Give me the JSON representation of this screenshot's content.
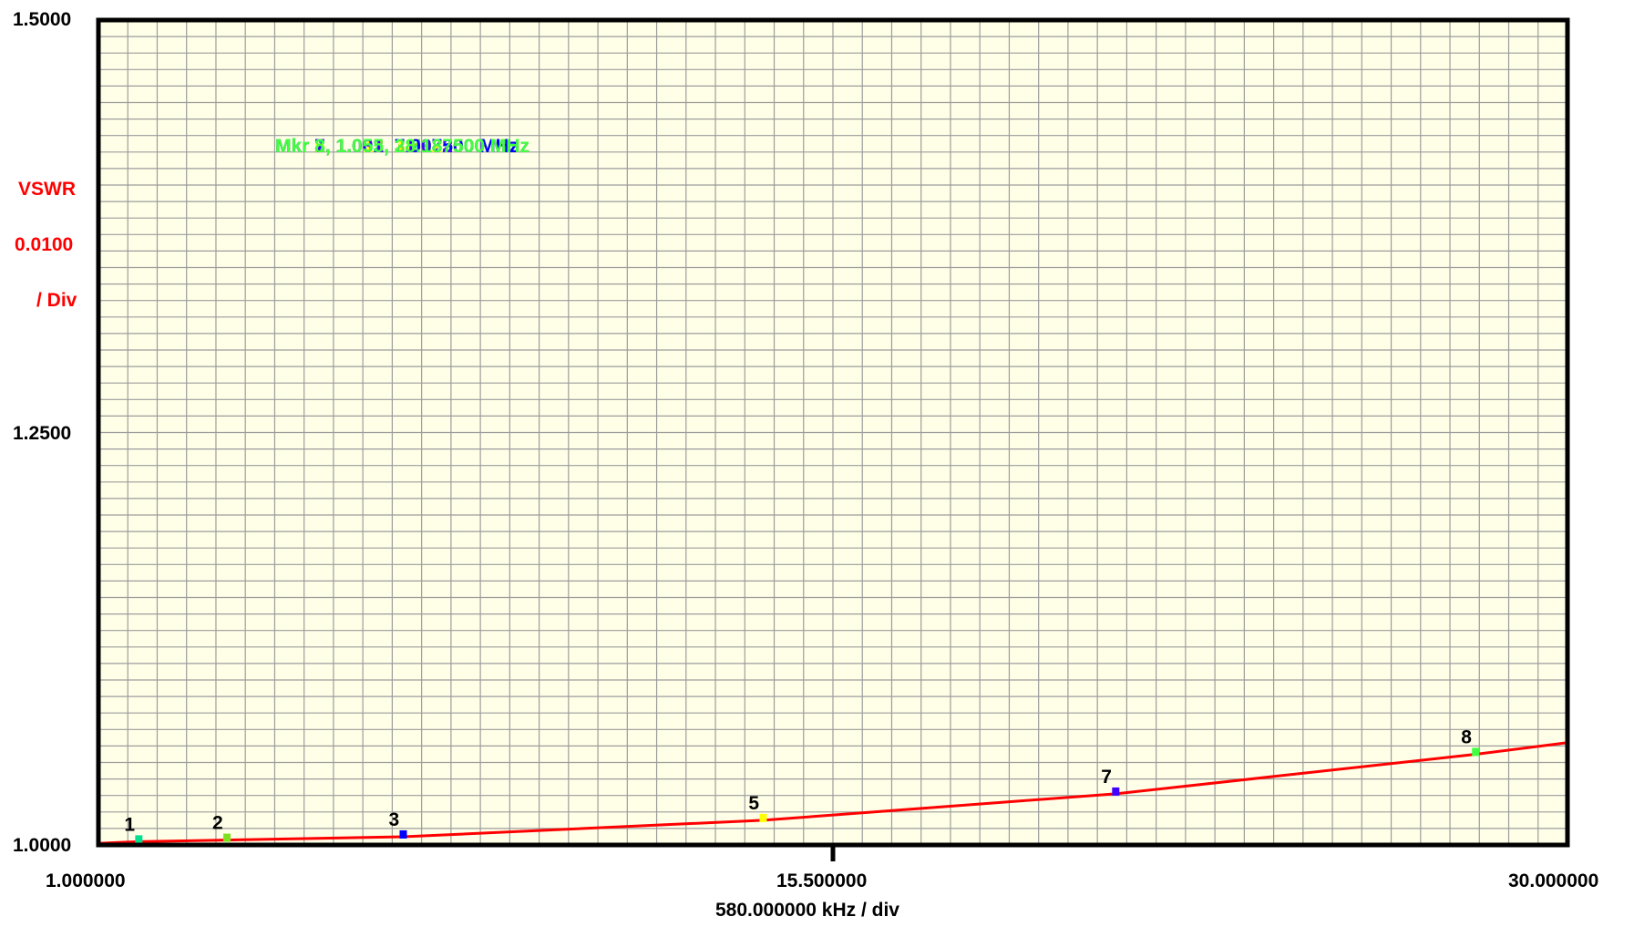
{
  "chart_data": {
    "type": "line",
    "y_axis": {
      "ticks": [
        "1.5000",
        "1.2500",
        "1.0000"
      ],
      "title_lines": [
        "VSWR",
        "0.0100",
        "/ Div"
      ],
      "range": [
        1.0,
        1.5
      ]
    },
    "x_axis": {
      "ticks": [
        "1.000000",
        "15.500000",
        "30.000000"
      ],
      "label": "580.000000 kHz / div",
      "range": [
        1.0,
        30.0
      ]
    },
    "grid": true,
    "series": [
      {
        "color": "#ff0000",
        "x": [
          1.0,
          1.7975,
          3.5375,
          7.0175,
          14.1225,
          21.0825,
          28.1875,
          30.0
        ],
        "y": [
          1.001,
          1.002,
          1.003,
          1.005,
          1.015,
          1.031,
          1.055,
          1.062
        ]
      }
    ],
    "markers": [
      {
        "label": "1",
        "x": 1.7975,
        "y": 1.002,
        "color": "#00e090",
        "legend": "Mkr 1, 1.002, 1.797500 MHz"
      },
      {
        "label": "2",
        "x": 3.5375,
        "y": 1.003,
        "color": "#80e020",
        "legend": "Mkr 2, 1.003, 3.537500 MHz"
      },
      {
        "label": "3",
        "x": 7.0175,
        "y": 1.005,
        "color": "#0000ff",
        "legend": "Mkr 3, 1.005, 7.017500 MHz"
      },
      {
        "label": "5",
        "x": 14.1225,
        "y": 1.015,
        "color": "#ffff00",
        "legend": "Mkr 5, 1.015, 14.122500 MHz"
      },
      {
        "label": "7",
        "x": 21.0825,
        "y": 1.031,
        "color": "#4000ff",
        "legend": "Mkr 7, 1.031, 21.082500 MHz"
      },
      {
        "label": "8",
        "x": 28.1875,
        "y": 1.055,
        "color": "#40ff40",
        "legend": "Mkr 8, 1.055, 28.187500 MHz"
      }
    ],
    "colors": {
      "plot_bg": "#ffffe8",
      "grid": "#9c9c9c",
      "frame": "#000000",
      "trace": "#ff0000"
    }
  }
}
